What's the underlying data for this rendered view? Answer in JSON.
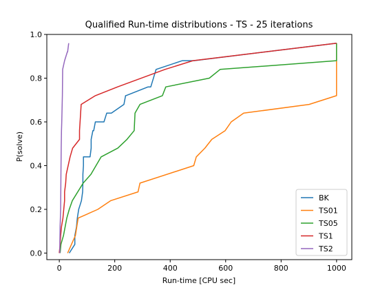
{
  "chart_data": {
    "type": "line",
    "title": "Qualified Run-time distributions - TS - 25 iterations",
    "xlabel": "Run-time [CPU sec]",
    "ylabel": "P(solve)",
    "xlim": [
      -45,
      1055
    ],
    "ylim": [
      -0.03,
      1.0
    ],
    "xticks": [
      0,
      200,
      400,
      600,
      800,
      1000
    ],
    "yticks": [
      0.0,
      0.2,
      0.4,
      0.6,
      0.8,
      1.0
    ],
    "xtick_labels": [
      "0",
      "200",
      "400",
      "600",
      "800",
      "1000"
    ],
    "ytick_labels": [
      "0.0",
      "0.2",
      "0.4",
      "0.6",
      "0.8",
      "1.0"
    ],
    "grid": false,
    "legend_position": "bottom-right",
    "series": [
      {
        "name": "BK",
        "color": "#1f77b4",
        "x": [
          36,
          56,
          56,
          62,
          65,
          70,
          80,
          84,
          85,
          85,
          87,
          87,
          111,
          115,
          115,
          121,
          124,
          130,
          138,
          153,
          161,
          171,
          182,
          185,
          188,
          233,
          233,
          239,
          240,
          320,
          327,
          330,
          349,
          444,
          486,
          1000
        ],
        "y": [
          0.0,
          0.04,
          0.08,
          0.12,
          0.16,
          0.2,
          0.24,
          0.28,
          0.32,
          0.36,
          0.4,
          0.44,
          0.44,
          0.48,
          0.52,
          0.56,
          0.56,
          0.6,
          0.6,
          0.6,
          0.6,
          0.64,
          0.64,
          0.64,
          0.64,
          0.68,
          0.68,
          0.72,
          0.72,
          0.76,
          0.76,
          0.76,
          0.84,
          0.88,
          0.88,
          0.96
        ]
      },
      {
        "name": "TS01",
        "color": "#ff7f0e",
        "x": [
          30,
          44,
          58,
          68,
          139,
          186,
          284,
          291,
          485,
          494,
          525,
          550,
          598,
          620,
          665,
          901,
          1000,
          1000
        ],
        "y": [
          0.0,
          0.04,
          0.08,
          0.16,
          0.2,
          0.24,
          0.28,
          0.32,
          0.4,
          0.44,
          0.48,
          0.52,
          0.56,
          0.6,
          0.64,
          0.68,
          0.72,
          0.96
        ]
      },
      {
        "name": "TS05",
        "color": "#2ca02c",
        "x": [
          3,
          6,
          15,
          27,
          36,
          47,
          86,
          114,
          151,
          211,
          244,
          270,
          273,
          291,
          372,
          384,
          541,
          580,
          1000,
          1000
        ],
        "y": [
          0.0,
          0.04,
          0.08,
          0.16,
          0.2,
          0.24,
          0.32,
          0.36,
          0.44,
          0.48,
          0.52,
          0.56,
          0.64,
          0.68,
          0.72,
          0.76,
          0.8,
          0.84,
          0.88,
          0.96
        ]
      },
      {
        "name": "TS1",
        "color": "#d62728",
        "x": [
          0,
          3,
          5,
          8,
          13,
          16,
          19,
          19,
          23,
          25,
          39,
          48,
          73,
          73,
          79,
          130,
          210,
          381,
          482,
          1000
        ],
        "y": [
          0.0,
          0.04,
          0.08,
          0.12,
          0.16,
          0.2,
          0.24,
          0.28,
          0.32,
          0.36,
          0.44,
          0.48,
          0.52,
          0.56,
          0.68,
          0.72,
          0.76,
          0.84,
          0.88,
          0.96
        ]
      },
      {
        "name": "TS2",
        "color": "#9467bd",
        "x": [
          2,
          2,
          3,
          4,
          5,
          6,
          7,
          8,
          9,
          11,
          12,
          19,
          29,
          30,
          34
        ],
        "y": [
          0.0,
          0.04,
          0.12,
          0.16,
          0.2,
          0.36,
          0.48,
          0.56,
          0.6,
          0.72,
          0.84,
          0.88,
          0.92,
          0.92,
          0.96
        ]
      }
    ]
  }
}
